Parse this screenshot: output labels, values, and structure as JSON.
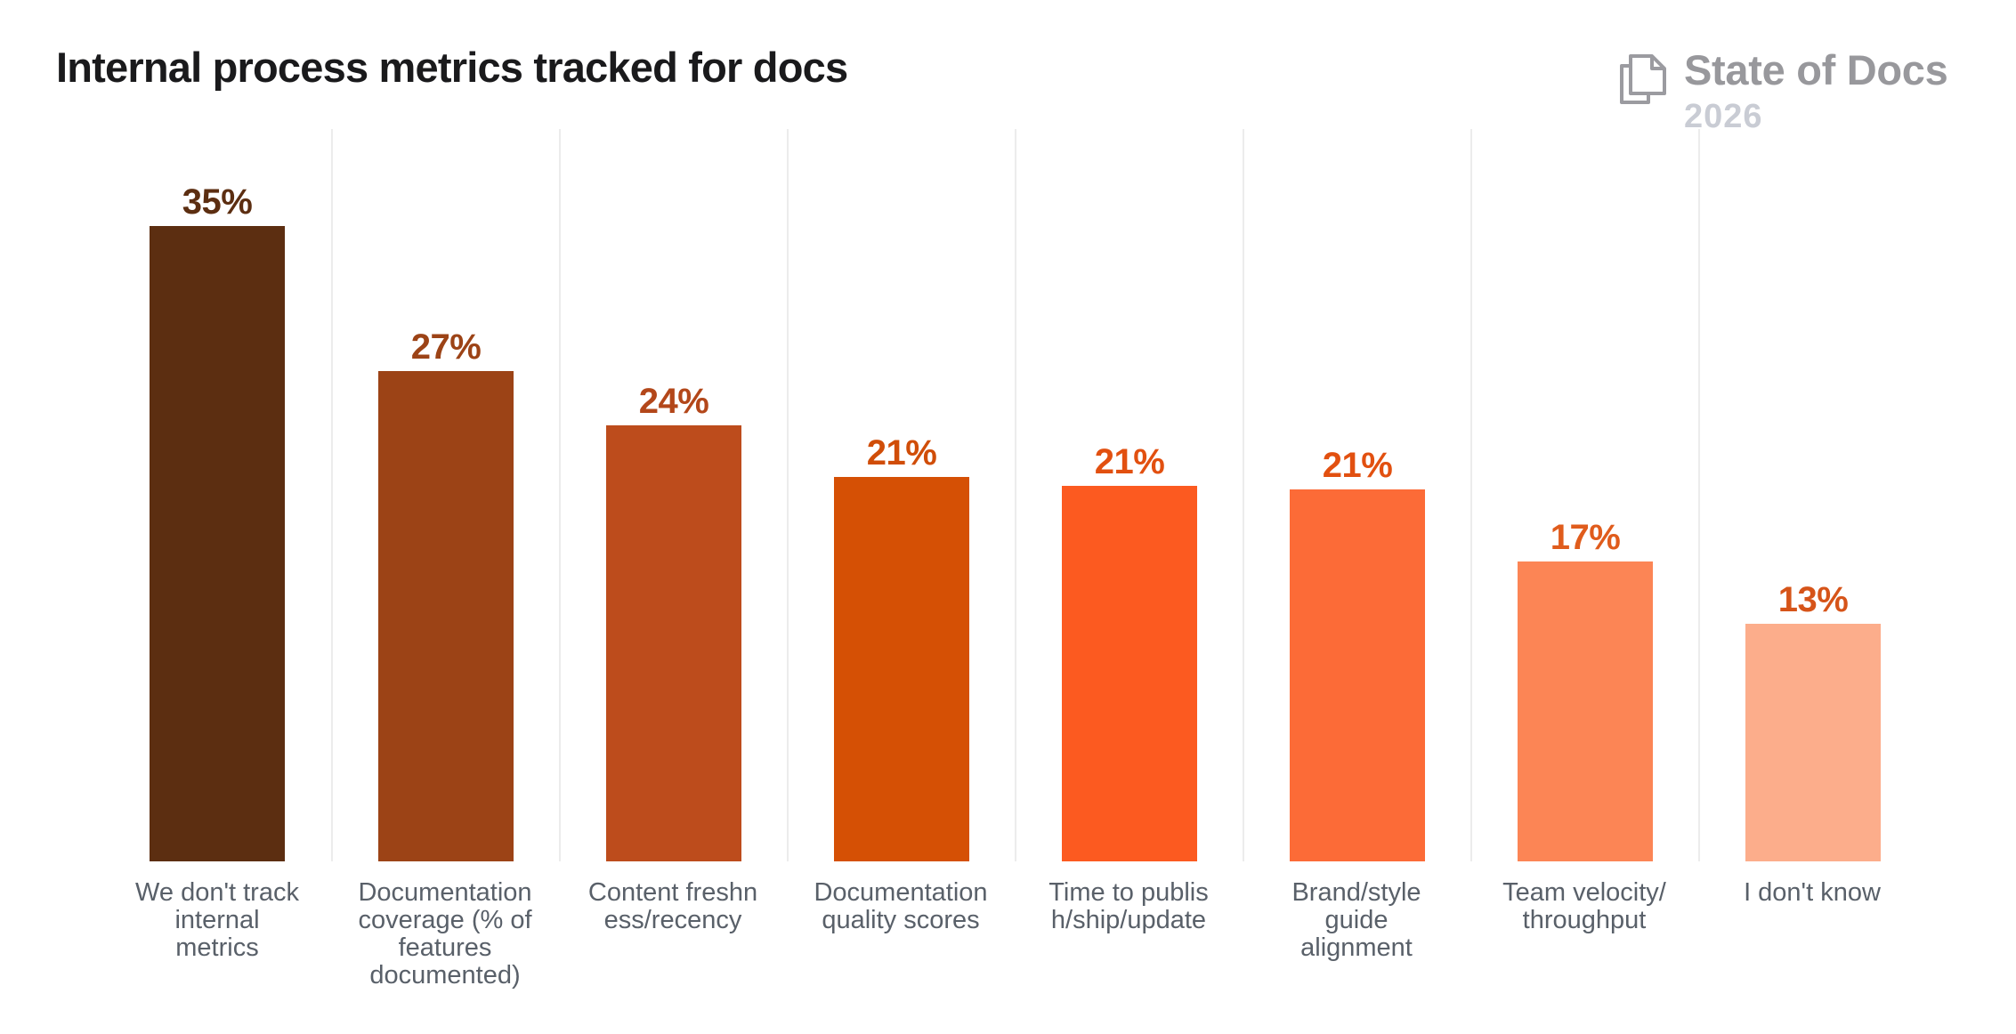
{
  "header": {
    "title": "Internal process metrics tracked for docs",
    "logo": {
      "name": "State of Docs",
      "year": "2026",
      "icon": "docs-pages-icon"
    }
  },
  "chart_data": {
    "type": "bar",
    "title": "Internal process metrics tracked for docs",
    "categories": [
      "We don't track internal metrics",
      "Documentation coverage (% of features documented)",
      "Content freshness/recency",
      "Documentation quality scores",
      "Time to publish/ship/update",
      "Brand/style guide alignment",
      "Team velocity/throughput",
      "I don't know"
    ],
    "category_label_lines": [
      [
        "We don't track",
        "internal",
        "metrics"
      ],
      [
        "Documentation",
        "coverage (% of",
        "features",
        "documented)"
      ],
      [
        "Content freshn",
        "ess/recency"
      ],
      [
        "Documentation",
        "quality scores"
      ],
      [
        "Time to publis",
        "h/ship/update"
      ],
      [
        "Brand/style",
        "guide",
        "alignment"
      ],
      [
        "Team velocity/",
        "throughput"
      ],
      [
        "I don't know"
      ]
    ],
    "values": [
      35,
      27,
      24,
      21,
      21,
      21,
      17,
      13
    ],
    "values_precise_pct": [
      35,
      27,
      24,
      21.2,
      20.7,
      20.5,
      16.5,
      13.1
    ],
    "value_labels": [
      "35%",
      "27%",
      "24%",
      "21%",
      "21%",
      "21%",
      "17%",
      "13%"
    ],
    "unit": "%",
    "bar_colors": [
      "#5C2E11",
      "#9C4316",
      "#BD4C1C",
      "#D55005",
      "#FC5A20",
      "#FC6B37",
      "#FC8555",
      "#FCAD8B"
    ],
    "value_label_colors": [
      "#5C2E11",
      "#9C4316",
      "#B3471A",
      "#D04D08",
      "#E25010",
      "#E25010",
      "#E05C1C",
      "#D65419"
    ],
    "xlabel": "",
    "ylabel": "",
    "ylim": [
      0,
      40
    ],
    "grid": "vertical-column-separators",
    "legend": "none"
  },
  "style": {
    "background": "#FFFFFF",
    "gridline_color": "#ECECEC",
    "title_color": "#1A1A1C",
    "logo_color": "#98989C",
    "logo_year_color": "#C9CCD4",
    "category_label_color": "#596069"
  }
}
